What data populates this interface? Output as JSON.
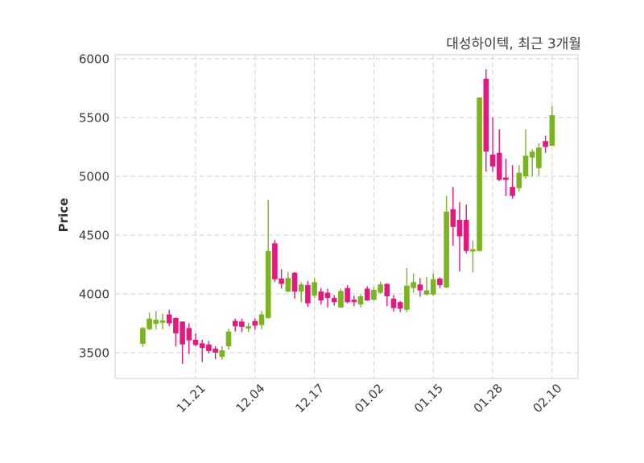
{
  "title": "대성하이텍, 최근 3개월",
  "chart_data": {
    "type": "candlestick",
    "title": "대성하이텍, 최근 3개월",
    "ylabel": "Price",
    "xlabel": "",
    "grid": "dashed",
    "legend_position": "none",
    "up_color": "#7ab41e",
    "down_color": "#e4187f",
    "y_ticks": [
      3500,
      4000,
      4500,
      5000,
      5500,
      6000
    ],
    "ylim": [
      3280,
      6070
    ],
    "x_tick_labels": [
      "11.21",
      "12.04",
      "12.17",
      "01.02",
      "01.15",
      "01.28",
      "02.10"
    ],
    "x_tick_indices": [
      8,
      17,
      26,
      35,
      44,
      53,
      62
    ],
    "columns": [
      "open",
      "high",
      "low",
      "close"
    ],
    "candles": [
      [
        3575,
        3720,
        3550,
        3710
      ],
      [
        3700,
        3840,
        3690,
        3790
      ],
      [
        3745,
        3855,
        3700,
        3780
      ],
      [
        3755,
        3830,
        3700,
        3775
      ],
      [
        3825,
        3865,
        3725,
        3750
      ],
      [
        3795,
        3800,
        3555,
        3665
      ],
      [
        3765,
        3765,
        3405,
        3570
      ],
      [
        3710,
        3750,
        3490,
        3605
      ],
      [
        3610,
        3665,
        3555,
        3565
      ],
      [
        3580,
        3610,
        3420,
        3540
      ],
      [
        3570,
        3600,
        3495,
        3515
      ],
      [
        3535,
        3555,
        3445,
        3500
      ],
      [
        3465,
        3555,
        3440,
        3520
      ],
      [
        3555,
        3705,
        3525,
        3680
      ],
      [
        3770,
        3790,
        3680,
        3725
      ],
      [
        3765,
        3790,
        3675,
        3720
      ],
      [
        3705,
        3755,
        3675,
        3725
      ],
      [
        3770,
        3790,
        3695,
        3730
      ],
      [
        3735,
        3855,
        3700,
        3825
      ],
      [
        3795,
        4800,
        3790,
        4365
      ],
      [
        4430,
        4460,
        4100,
        4125
      ],
      [
        4130,
        4210,
        4045,
        4085
      ],
      [
        4020,
        4185,
        4015,
        4135
      ],
      [
        4180,
        4185,
        3960,
        4020
      ],
      [
        4020,
        4100,
        3930,
        4080
      ],
      [
        4075,
        4110,
        3890,
        3920
      ],
      [
        3985,
        4135,
        3965,
        4100
      ],
      [
        4020,
        4050,
        3910,
        3945
      ],
      [
        4010,
        4045,
        3885,
        3965
      ],
      [
        3965,
        3990,
        3900,
        3930
      ],
      [
        3885,
        4045,
        3880,
        4025
      ],
      [
        4050,
        4075,
        3920,
        3930
      ],
      [
        3950,
        3985,
        3895,
        3930
      ],
      [
        3910,
        3995,
        3885,
        3980
      ],
      [
        4045,
        4065,
        3940,
        3945
      ],
      [
        3950,
        4060,
        3945,
        4035
      ],
      [
        4010,
        4105,
        4000,
        4080
      ],
      [
        4085,
        4090,
        3895,
        3980
      ],
      [
        3960,
        3990,
        3850,
        3880
      ],
      [
        3930,
        3940,
        3845,
        3875
      ],
      [
        3865,
        4220,
        3845,
        4070
      ],
      [
        4050,
        4175,
        4010,
        4100
      ],
      [
        4080,
        4135,
        3975,
        4030
      ],
      [
        3995,
        4145,
        3985,
        4030
      ],
      [
        3995,
        4175,
        3985,
        4125
      ],
      [
        4130,
        4140,
        4050,
        4075
      ],
      [
        4055,
        4835,
        4050,
        4700
      ],
      [
        4720,
        4910,
        4410,
        4570
      ],
      [
        4630,
        4780,
        4190,
        4490
      ],
      [
        4630,
        4760,
        4345,
        4365
      ],
      [
        4360,
        4455,
        4185,
        4380
      ],
      [
        4365,
        5670,
        4360,
        5670
      ],
      [
        5830,
        5910,
        5040,
        5210
      ],
      [
        5185,
        5500,
        5040,
        5085
      ],
      [
        5200,
        5400,
        4960,
        4970
      ],
      [
        4990,
        5150,
        4835,
        4970
      ],
      [
        4910,
        5095,
        4810,
        4835
      ],
      [
        4900,
        5095,
        4870,
        5030
      ],
      [
        5000,
        5400,
        4980,
        5175
      ],
      [
        5160,
        5230,
        5000,
        5210
      ],
      [
        5070,
        5280,
        5005,
        5245
      ],
      [
        5300,
        5345,
        5200,
        5250
      ],
      [
        5260,
        5600,
        5260,
        5520
      ]
    ]
  }
}
